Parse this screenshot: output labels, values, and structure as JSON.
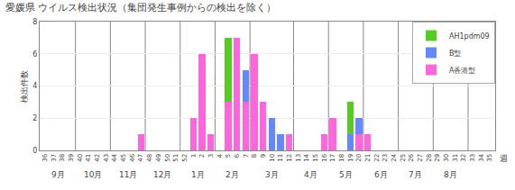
{
  "chart_data": {
    "type": "bar",
    "stacked": true,
    "title": "愛媛県 ウイルス検出状況（集団発生事例からの検出を除く）",
    "ylabel": "検出件数",
    "xlabel": "週",
    "annotations": [
      "9月",
      "10月",
      "11月",
      "12月",
      "1月",
      "2月",
      "3月",
      "4月",
      "5月",
      "6月",
      "7月",
      "8月"
    ],
    "categories": [
      36,
      37,
      38,
      39,
      40,
      41,
      42,
      43,
      44,
      45,
      46,
      47,
      48,
      49,
      50,
      51,
      52,
      1,
      2,
      3,
      4,
      5,
      6,
      7,
      8,
      9,
      10,
      11,
      12,
      13,
      14,
      15,
      16,
      17,
      18,
      19,
      20,
      21,
      22,
      23,
      24,
      25,
      26,
      27,
      28,
      29,
      30,
      31,
      32,
      33,
      34,
      35
    ],
    "series": [
      {
        "name": "A香港型",
        "color": "#ff66dd",
        "values": [
          0,
          0,
          0,
          0,
          0,
          0,
          0,
          0,
          0,
          0,
          0,
          1,
          0,
          0,
          0,
          0,
          0,
          2,
          6,
          1,
          0,
          3,
          7,
          3,
          6,
          3,
          0,
          0,
          1,
          0,
          0,
          0,
          1,
          2,
          0,
          0,
          1,
          1,
          0,
          0,
          0,
          0,
          0,
          0,
          0,
          0,
          0,
          0,
          0,
          0,
          0,
          0
        ]
      },
      {
        "name": "B型",
        "color": "#6688ff",
        "values": [
          0,
          0,
          0,
          0,
          0,
          0,
          0,
          0,
          0,
          0,
          0,
          0,
          0,
          0,
          0,
          0,
          0,
          0,
          0,
          0,
          0,
          0,
          0,
          2,
          0,
          0,
          2,
          1,
          0,
          0,
          0,
          0,
          0,
          0,
          0,
          1,
          1,
          0,
          0,
          0,
          0,
          0,
          0,
          0,
          0,
          0,
          0,
          0,
          0,
          0,
          0,
          0
        ]
      },
      {
        "name": "AH1pdm09",
        "color": "#55cc22",
        "values": [
          0,
          0,
          0,
          0,
          0,
          0,
          0,
          0,
          0,
          0,
          0,
          0,
          0,
          0,
          0,
          0,
          0,
          0,
          0,
          0,
          0,
          4,
          0,
          0,
          0,
          0,
          0,
          0,
          0,
          0,
          0,
          0,
          0,
          0,
          0,
          2,
          0,
          0,
          0,
          0,
          0,
          0,
          0,
          0,
          0,
          0,
          0,
          0,
          0,
          0,
          0,
          0
        ]
      }
    ],
    "ylim": [
      0,
      8
    ],
    "yticks": [
      0,
      2,
      4,
      6,
      8
    ],
    "grid": true,
    "legend": "upper right"
  }
}
